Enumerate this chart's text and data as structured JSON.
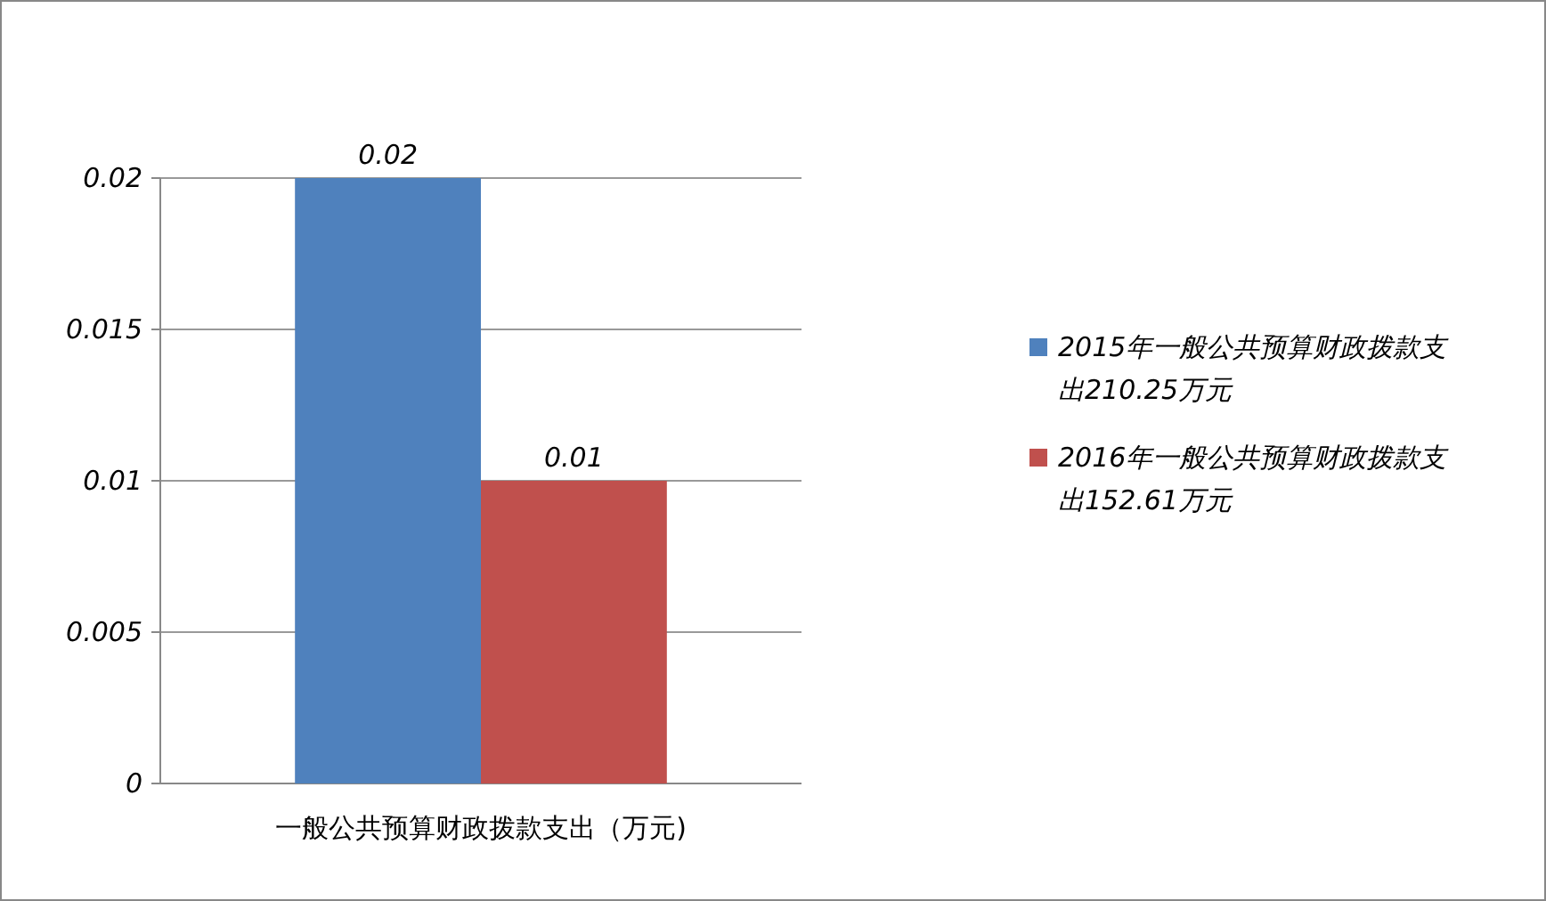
{
  "chart_data": {
    "type": "bar",
    "categories": [
      "一般公共预算财政拨款支出（万元)"
    ],
    "series": [
      {
        "name": "2015年一般公共预算财政拨款支出210.25万元",
        "color": "#4f81bd",
        "values": [
          0.02
        ]
      },
      {
        "name": "2016年一般公共预算财政拨款支出152.61万元",
        "color": "#c0504d",
        "values": [
          0.01
        ]
      }
    ],
    "ylim": [
      0,
      0.02
    ],
    "yticks": [
      0,
      0.005,
      0.01,
      0.015,
      0.02
    ],
    "grid": "y",
    "legend": "right",
    "data_labels": true
  }
}
